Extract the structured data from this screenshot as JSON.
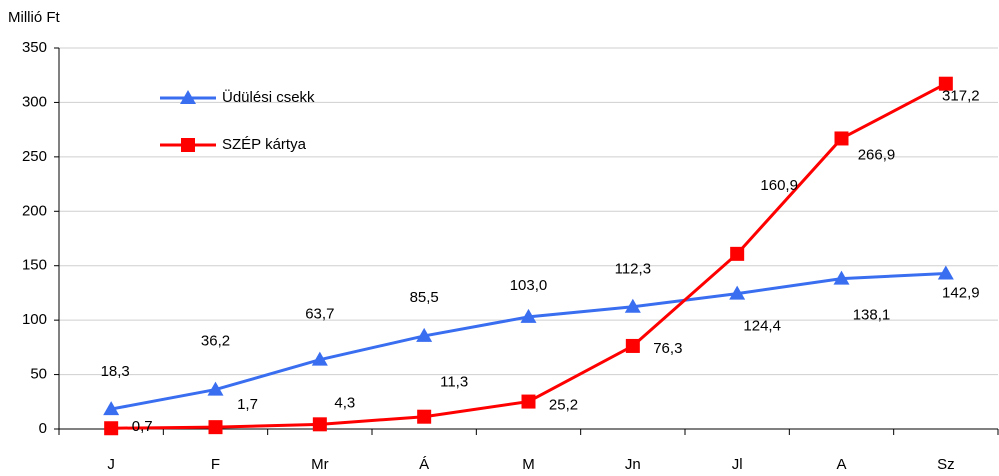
{
  "chart_data": {
    "type": "line",
    "y_axis_label": "Millió Ft",
    "categories": [
      "J",
      "F",
      "Mr",
      "Á",
      "M",
      "Jn",
      "Jl",
      "A",
      "Sz"
    ],
    "series": [
      {
        "name": "Üdülési csekk",
        "color": "#3a6ef0",
        "marker": "triangle",
        "values": [
          18.3,
          36.2,
          63.7,
          85.5,
          103.0,
          112.3,
          124.4,
          138.1,
          142.9
        ],
        "value_labels": [
          "18,3",
          "36,2",
          "63,7",
          "85,5",
          "103,0",
          "112,3",
          "124,4",
          "138,1",
          "142,9"
        ]
      },
      {
        "name": "SZÉP kártya",
        "color": "#ff0000",
        "marker": "square",
        "values": [
          0.7,
          1.7,
          4.3,
          11.3,
          25.2,
          76.3,
          160.9,
          266.9,
          317.2
        ],
        "value_labels": [
          "0,7",
          "1,7",
          "4,3",
          "11,3",
          "25,2",
          "76,3",
          "160,9",
          "266,9",
          "317,2"
        ]
      }
    ],
    "ylim": [
      0,
      350
    ],
    "yticks": [
      0,
      50,
      100,
      150,
      200,
      250,
      300,
      350
    ],
    "grid": true,
    "legend": "upper left"
  }
}
